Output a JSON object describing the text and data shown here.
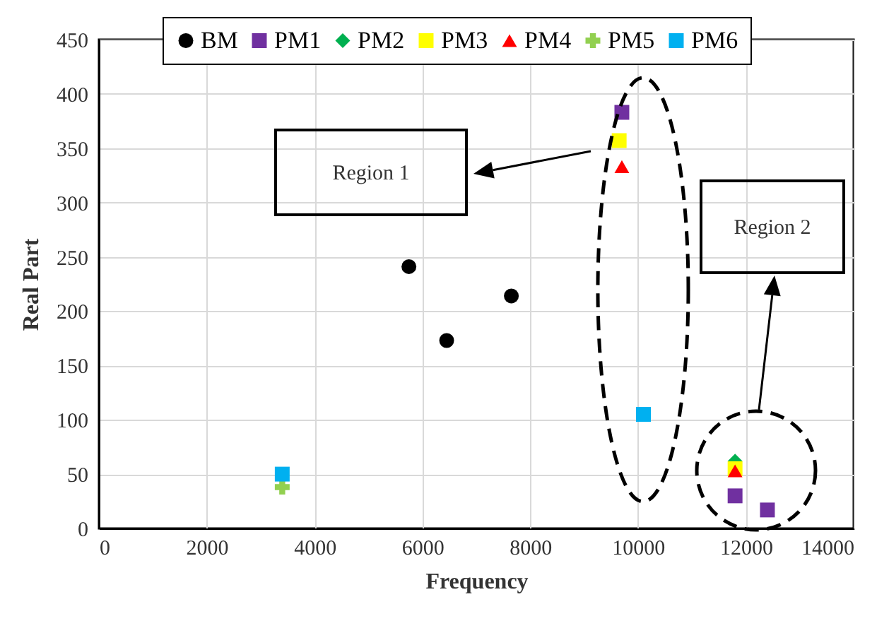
{
  "chart_data": {
    "type": "scatter",
    "xlabel": "Frequency",
    "ylabel": "Real Part",
    "xlim": [
      0,
      14000
    ],
    "xticks": [
      0,
      2000,
      4000,
      6000,
      8000,
      10000,
      12000,
      14000
    ],
    "ylim": [
      0,
      450
    ],
    "yticks": [
      0,
      50,
      100,
      150,
      200,
      250,
      300,
      350,
      400,
      450
    ],
    "grid": true,
    "legend": "top",
    "annotations": [
      "Region 1",
      "Region 2"
    ],
    "series": [
      {
        "name": "BM",
        "color": "#000000",
        "marker": "circle",
        "x": [
          5750,
          6450,
          7650
        ],
        "values": [
          241,
          173,
          214
        ]
      },
      {
        "name": "PM1",
        "color": "#7030a0",
        "marker": "square",
        "x": [
          9700,
          11800,
          12400
        ],
        "values": [
          383,
          30,
          17
        ]
      },
      {
        "name": "PM2",
        "color": "#00b050",
        "marker": "diamond",
        "x": [
          11800
        ],
        "values": [
          62
        ]
      },
      {
        "name": "PM3",
        "color": "#ffff00",
        "marker": "square",
        "x": [
          9650,
          11800
        ],
        "values": [
          357,
          55
        ]
      },
      {
        "name": "PM4",
        "color": "#ff0000",
        "marker": "triangle",
        "x": [
          9700,
          11800
        ],
        "values": [
          333,
          53
        ]
      },
      {
        "name": "PM5",
        "color": "#92d050",
        "marker": "cross",
        "x": [
          3400
        ],
        "values": [
          38
        ]
      },
      {
        "name": "PM6",
        "color": "#00b0f0",
        "marker": "square",
        "x": [
          3400,
          10100
        ],
        "values": [
          50,
          105
        ]
      }
    ]
  }
}
